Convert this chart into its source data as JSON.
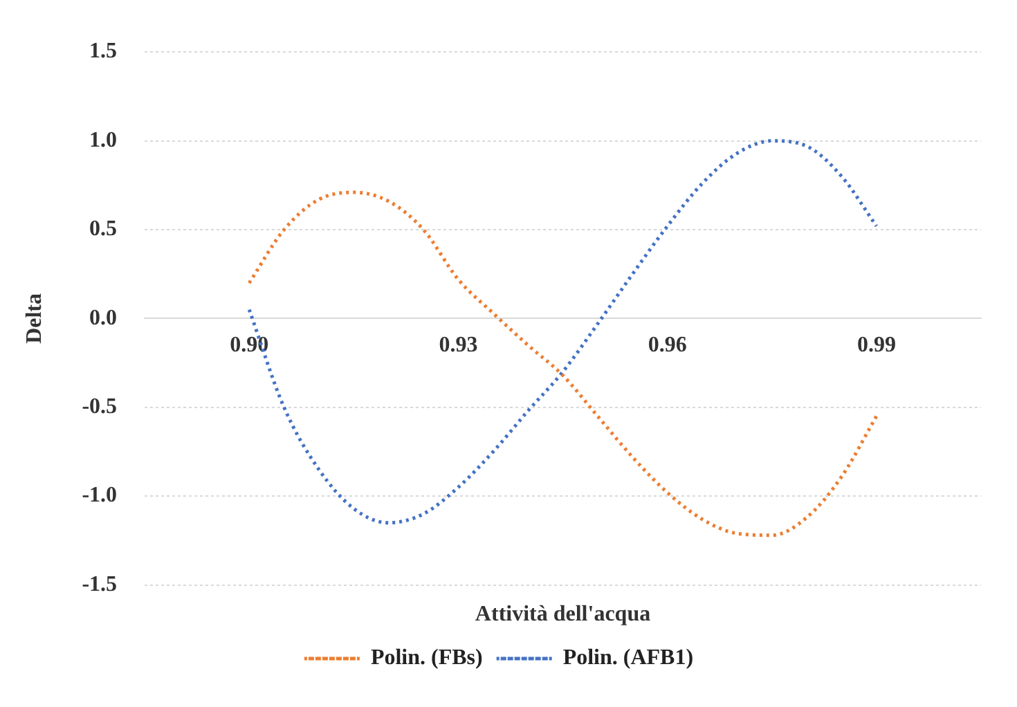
{
  "chart_data": {
    "type": "line",
    "xlabel": "Attività dell'acqua",
    "ylabel": "Delta",
    "x": [
      0.9,
      0.905,
      0.91,
      0.915,
      0.92,
      0.925,
      0.93,
      0.935,
      0.94,
      0.945,
      0.95,
      0.955,
      0.96,
      0.965,
      0.97,
      0.975,
      0.98,
      0.985,
      0.99
    ],
    "series": [
      {
        "name": "Polin. (FBs)",
        "color": "#ed7d31",
        "values": [
          0.2,
          0.5,
          0.67,
          0.71,
          0.66,
          0.5,
          0.22,
          0.03,
          -0.15,
          -0.32,
          -0.55,
          -0.78,
          -0.98,
          -1.13,
          -1.21,
          -1.22,
          -1.12,
          -0.89,
          -0.55
        ]
      },
      {
        "name": "Polin. (AFB1)",
        "color": "#4472c4",
        "values": [
          0.05,
          -0.5,
          -0.85,
          -1.07,
          -1.15,
          -1.1,
          -0.95,
          -0.75,
          -0.52,
          -0.3,
          -0.03,
          0.25,
          0.52,
          0.76,
          0.93,
          1.0,
          0.97,
          0.8,
          0.52
        ]
      }
    ],
    "xlim": [
      0.885,
      1.005
    ],
    "xticks": [
      {
        "value": 0.9,
        "label": "0.90"
      },
      0.93,
      0.96,
      0.99
    ],
    "ylim": [
      -1.5,
      1.5
    ],
    "yticks": [
      -1.5,
      {
        "value": -1.0,
        "label": "-1.0"
      },
      -0.5,
      {
        "value": 0.0,
        "label": "0.0"
      },
      0.5,
      {
        "value": 1.0,
        "label": "1.0"
      },
      1.5
    ],
    "grid": "y",
    "legend": "bottom",
    "marker": "none",
    "line_style": "dotted"
  }
}
